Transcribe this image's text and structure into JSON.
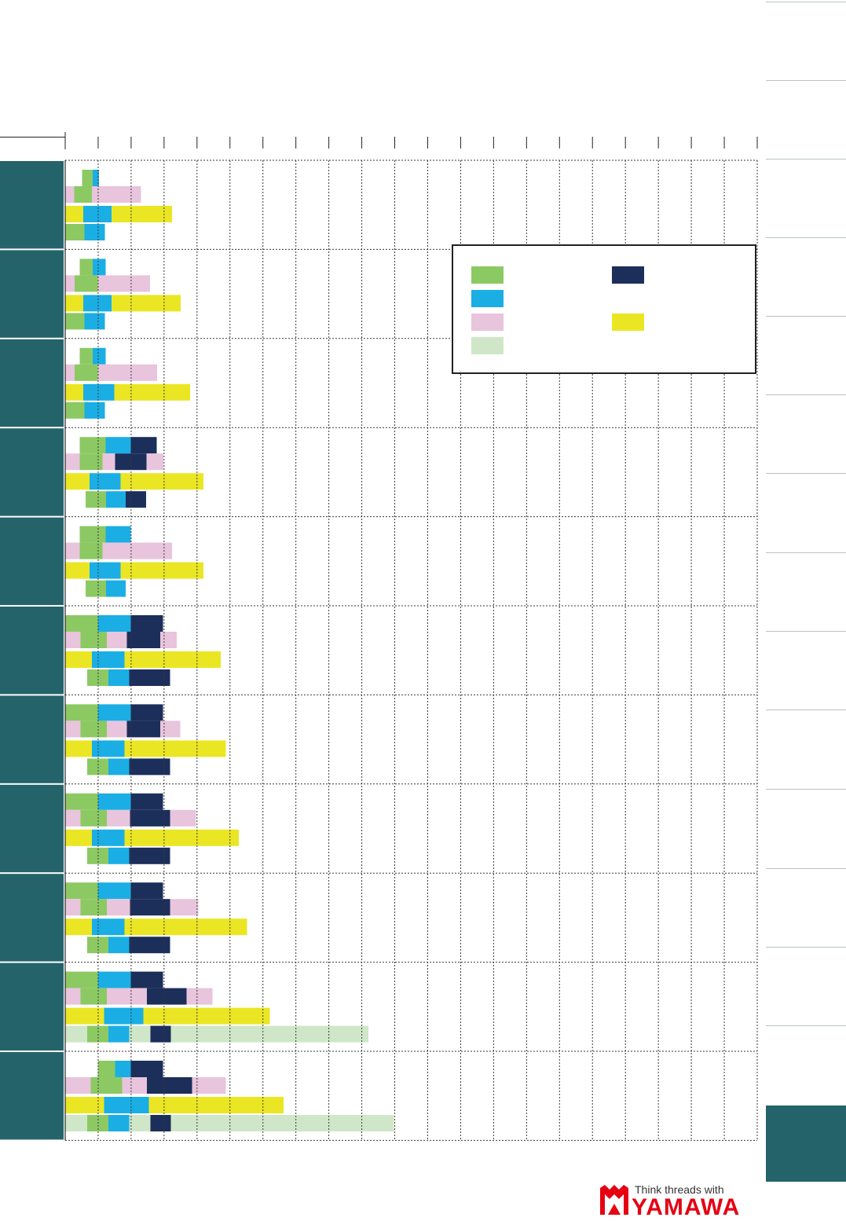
{
  "chart_data": {
    "type": "bar",
    "orientation": "horizontal",
    "stacked": true,
    "title": "",
    "xlabel": "",
    "ylabel": "",
    "categories": [
      "",
      "",
      "",
      "",
      "",
      "",
      "",
      "",
      "",
      "",
      ""
    ],
    "grid": true,
    "legend_placement": "top-right",
    "legend_entries": [
      {
        "name": "",
        "color": "#8cc963"
      },
      {
        "name": "",
        "color": "#1aaee5"
      },
      {
        "name": "",
        "color": "#e8c4dd"
      },
      {
        "name": "",
        "color": "#cfe7c8"
      },
      {
        "name": "",
        "color": "#1c2e5a"
      },
      {
        "name": "",
        "color": "#ebe623"
      }
    ],
    "rows": [
      {
        "lines": [
          [
            [
              "#ffffff",
              21.5
            ],
            [
              "#8cc963",
              13.5
            ],
            [
              "#1aaee5",
              8
            ]
          ],
          [
            [
              "#e8c4dd",
              11.5
            ],
            [
              "#8cc963",
              22.5
            ],
            [
              "#e8c4dd",
              62.5
            ]
          ],
          [
            [
              "#ebe623",
              23
            ],
            [
              "#1aaee5",
              36
            ],
            [
              "#ebe623",
              77
            ]
          ],
          [
            [
              "#8cc963",
              24.5
            ],
            [
              "#1aaee5",
              26
            ]
          ]
        ]
      },
      {
        "lines": [
          [
            [
              "#ffffff",
              18.5
            ],
            [
              "#8cc963",
              16.5
            ],
            [
              "#1aaee5",
              16.5
            ]
          ],
          [
            [
              "#e8c4dd",
              12
            ],
            [
              "#8cc963",
              29.5
            ],
            [
              "#e8c4dd",
              66.5
            ]
          ],
          [
            [
              "#ebe623",
              23
            ],
            [
              "#1aaee5",
              36
            ],
            [
              "#ebe623",
              88
            ]
          ],
          [
            [
              "#8cc963",
              24.5
            ],
            [
              "#1aaee5",
              26
            ]
          ]
        ]
      },
      {
        "lines": [
          [
            [
              "#ffffff",
              18.5
            ],
            [
              "#8cc963",
              16.5
            ],
            [
              "#1aaee5",
              16.5
            ]
          ],
          [
            [
              "#e8c4dd",
              12
            ],
            [
              "#8cc963",
              29.5
            ],
            [
              "#e8c4dd",
              75.5
            ]
          ],
          [
            [
              "#ebe623",
              23
            ],
            [
              "#1aaee5",
              39.5
            ],
            [
              "#ebe623",
              96.5
            ]
          ],
          [
            [
              "#8cc963",
              24.5
            ],
            [
              "#1aaee5",
              26
            ]
          ]
        ]
      },
      {
        "lines": [
          [
            [
              "#ffffff",
              18.5
            ],
            [
              "#8cc963",
              33
            ],
            [
              "#1aaee5",
              32
            ],
            [
              "#1c2e5a",
              33
            ]
          ],
          [
            [
              "#e8c4dd",
              18.5
            ],
            [
              "#8cc963",
              29
            ],
            [
              "#e8c4dd",
              16
            ],
            [
              "#1c2e5a",
              40
            ],
            [
              "#e8c4dd",
              21.5
            ]
          ],
          [
            [
              "#ebe623",
              31
            ],
            [
              "#1aaee5",
              39.5
            ],
            [
              "#ebe623",
              105.5
            ]
          ],
          [
            [
              "#ffffff",
              26
            ],
            [
              "#8cc963",
              26
            ],
            [
              "#1aaee5",
              25
            ],
            [
              "#1c2e5a",
              26
            ]
          ]
        ]
      },
      {
        "lines": [
          [
            [
              "#ffffff",
              18.5
            ],
            [
              "#8cc963",
              33
            ],
            [
              "#1aaee5",
              32
            ]
          ],
          [
            [
              "#e8c4dd",
              18.5
            ],
            [
              "#8cc963",
              29
            ],
            [
              "#e8c4dd",
              88.5
            ]
          ],
          [
            [
              "#ebe623",
              31
            ],
            [
              "#1aaee5",
              39.5
            ],
            [
              "#ebe623",
              105.5
            ]
          ],
          [
            [
              "#ffffff",
              26
            ],
            [
              "#8cc963",
              26
            ],
            [
              "#1aaee5",
              25
            ]
          ]
        ]
      },
      {
        "lines": [
          [
            [
              "#8cc963",
              41.5
            ],
            [
              "#1aaee5",
              42
            ],
            [
              "#1c2e5a",
              41
            ]
          ],
          [
            [
              "#e8c4dd",
              19.5
            ],
            [
              "#8cc963",
              33.5
            ],
            [
              "#e8c4dd",
              25.5
            ],
            [
              "#1c2e5a",
              42.5
            ],
            [
              "#e8c4dd",
              21
            ]
          ],
          [
            [
              "#ebe623",
              34
            ],
            [
              "#1aaee5",
              41.5
            ],
            [
              "#ebe623",
              122.5
            ]
          ],
          [
            [
              "#ffffff",
              28
            ],
            [
              "#8cc963",
              27
            ],
            [
              "#1aaee5",
              26.5
            ],
            [
              "#1c2e5a",
              52
            ]
          ]
        ]
      },
      {
        "lines": [
          [
            [
              "#8cc963",
              41.5
            ],
            [
              "#1aaee5",
              42
            ],
            [
              "#1c2e5a",
              41
            ]
          ],
          [
            [
              "#e8c4dd",
              19.5
            ],
            [
              "#8cc963",
              33.5
            ],
            [
              "#e8c4dd",
              25.5
            ],
            [
              "#1c2e5a",
              42.5
            ],
            [
              "#e8c4dd",
              25.5
            ]
          ],
          [
            [
              "#ebe623",
              34
            ],
            [
              "#1aaee5",
              41.5
            ],
            [
              "#ebe623",
              129
            ]
          ],
          [
            [
              "#ffffff",
              28
            ],
            [
              "#8cc963",
              27
            ],
            [
              "#1aaee5",
              26.5
            ],
            [
              "#1c2e5a",
              52
            ]
          ]
        ]
      },
      {
        "lines": [
          [
            [
              "#8cc963",
              41.5
            ],
            [
              "#1aaee5",
              42
            ],
            [
              "#1c2e5a",
              41
            ]
          ],
          [
            [
              "#e8c4dd",
              19.5
            ],
            [
              "#8cc963",
              33.5
            ],
            [
              "#e8c4dd",
              29.5
            ],
            [
              "#1c2e5a",
              51
            ],
            [
              "#e8c4dd",
              33
            ]
          ],
          [
            [
              "#ebe623",
              34
            ],
            [
              "#1aaee5",
              41.5
            ],
            [
              "#ebe623",
              145.5
            ]
          ],
          [
            [
              "#ffffff",
              28
            ],
            [
              "#8cc963",
              27
            ],
            [
              "#1aaee5",
              26.5
            ],
            [
              "#1c2e5a",
              52
            ]
          ]
        ]
      },
      {
        "lines": [
          [
            [
              "#8cc963",
              41.5
            ],
            [
              "#1aaee5",
              42
            ],
            [
              "#1c2e5a",
              41
            ]
          ],
          [
            [
              "#e8c4dd",
              19.5
            ],
            [
              "#8cc963",
              33.5
            ],
            [
              "#e8c4dd",
              29.5
            ],
            [
              "#1c2e5a",
              51
            ],
            [
              "#e8c4dd",
              36
            ]
          ],
          [
            [
              "#ebe623",
              34
            ],
            [
              "#1aaee5",
              41.5
            ],
            [
              "#ebe623",
              156
            ]
          ],
          [
            [
              "#ffffff",
              28
            ],
            [
              "#8cc963",
              27
            ],
            [
              "#1aaee5",
              26.5
            ],
            [
              "#1c2e5a",
              52
            ]
          ]
        ]
      },
      {
        "lines": [
          [
            [
              "#8cc963",
              41.5
            ],
            [
              "#1aaee5",
              42
            ],
            [
              "#1c2e5a",
              41
            ]
          ],
          [
            [
              "#e8c4dd",
              19.5
            ],
            [
              "#8cc963",
              33.5
            ],
            [
              "#e8c4dd",
              51
            ],
            [
              "#1c2e5a",
              50.5
            ],
            [
              "#e8c4dd",
              33
            ]
          ],
          [
            [
              "#ebe623",
              49.5
            ],
            [
              "#1aaee5",
              50
            ],
            [
              "#ebe623",
              161
            ]
          ],
          [
            [
              "#cfe7c8",
              28
            ],
            [
              "#8cc963",
              27
            ],
            [
              "#1aaee5",
              26.5
            ],
            [
              "#cfe7c8",
              27
            ],
            [
              "#1c2e5a",
              26
            ],
            [
              "#cfe7c8",
              251.5
            ]
          ]
        ]
      },
      {
        "lines": [
          [
            [
              "#ffffff",
              41.5
            ],
            [
              "#8cc963",
              22
            ],
            [
              "#1aaee5",
              20
            ],
            [
              "#1c2e5a",
              41
            ]
          ],
          [
            [
              "#e8c4dd",
              32.5
            ],
            [
              "#8cc963",
              40
            ],
            [
              "#e8c4dd",
              31.5
            ],
            [
              "#1c2e5a",
              57.5
            ],
            [
              "#e8c4dd",
              43
            ]
          ],
          [
            [
              "#ebe623",
              49.5
            ],
            [
              "#1aaee5",
              57
            ],
            [
              "#ebe623",
              171.5
            ]
          ],
          [
            [
              "#cfe7c8",
              28
            ],
            [
              "#8cc963",
              27
            ],
            [
              "#1aaee5",
              26.5
            ],
            [
              "#cfe7c8",
              27
            ],
            [
              "#1c2e5a",
              26
            ],
            [
              "#cfe7c8",
              284
            ]
          ]
        ]
      }
    ],
    "xlim": [
      0,
      21
    ],
    "tick_count": 21
  },
  "logo": {
    "tagline": "Think threads with",
    "wordmark": "YAMAWA"
  },
  "colors": {
    "row_label_bg": "#25636b",
    "grid": "#3a3a3a",
    "side_tab_active": "#25636b"
  }
}
